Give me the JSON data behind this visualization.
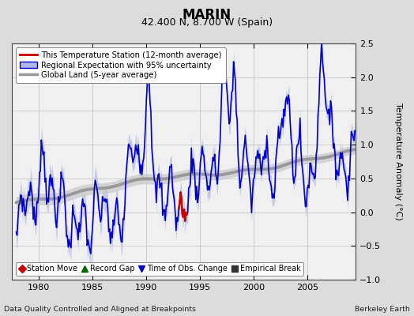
{
  "title": "MARIN",
  "subtitle": "42.400 N, 8.700 W (Spain)",
  "ylabel": "Temperature Anomaly (°C)",
  "xlabel_bottom_left": "Data Quality Controlled and Aligned at Breakpoints",
  "xlabel_bottom_right": "Berkeley Earth",
  "ylim": [
    -1.0,
    2.5
  ],
  "xlim": [
    1977.5,
    2009.5
  ],
  "xticks": [
    1980,
    1985,
    1990,
    1995,
    2000,
    2005
  ],
  "yticks": [
    -1.0,
    -0.5,
    0.0,
    0.5,
    1.0,
    1.5,
    2.0,
    2.5
  ],
  "fig_bg_color": "#dcdcdc",
  "plot_bg_color": "#f0f0f0",
  "grid_color": "#c8c8c8",
  "blue_line_color": "#0000cc",
  "blue_fill_color": "#b0b8e8",
  "red_line_color": "#cc0000",
  "gray_line_color": "#999999",
  "gray_fill_color": "#c8c8c8",
  "legend1_labels": [
    "This Temperature Station (12-month average)",
    "Regional Expectation with 95% uncertainty",
    "Global Land (5-year average)"
  ],
  "legend2_labels": [
    "Station Move",
    "Record Gap",
    "Time of Obs. Change",
    "Empirical Break"
  ],
  "legend2_colors": [
    "#cc0000",
    "#006600",
    "#0000cc",
    "#333333"
  ],
  "legend2_markers": [
    "D",
    "^",
    "v",
    "s"
  ]
}
